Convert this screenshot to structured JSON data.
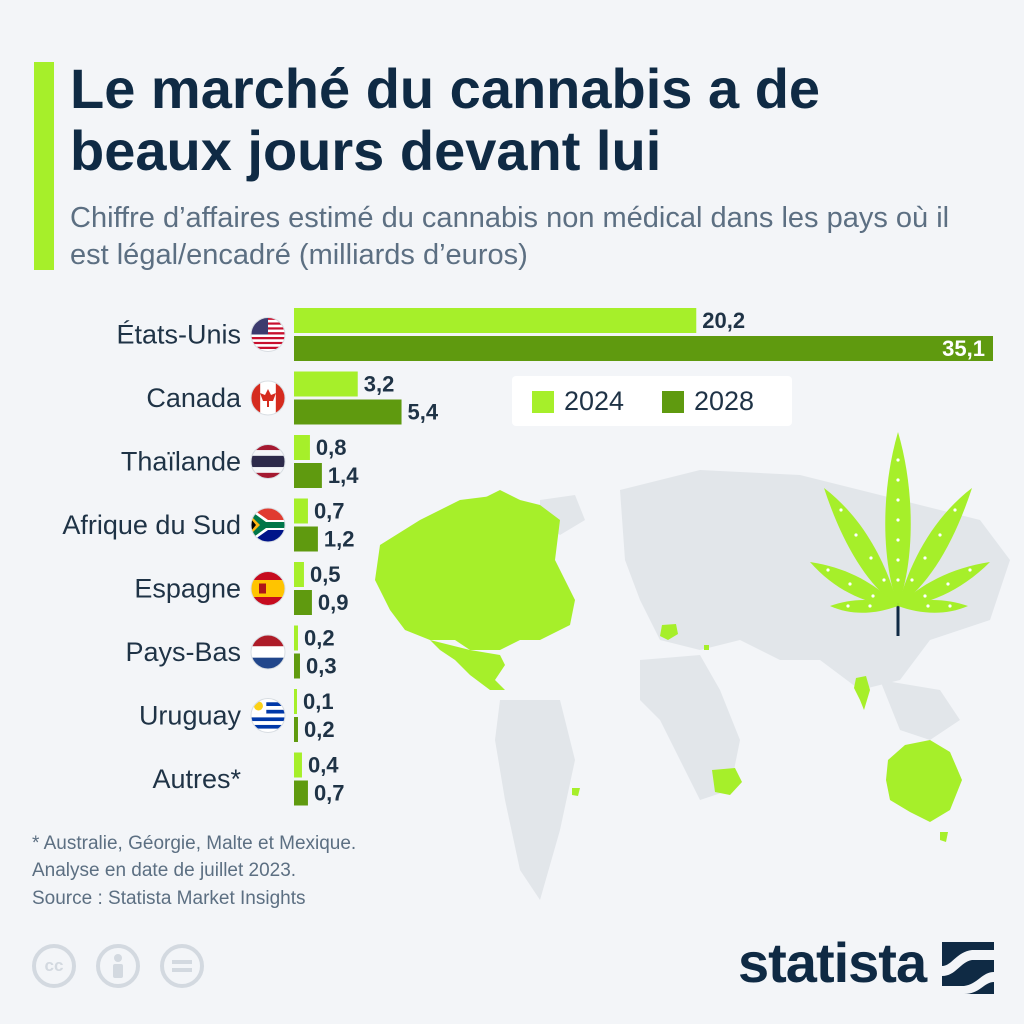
{
  "header": {
    "title": "Le marché du cannabis a de beaux jours devant lui",
    "subtitle": "Chiffre d’affaires estimé du cannabis non médical dans les pays où il est légal/encadré (milliards d’euros)"
  },
  "chart_data": {
    "type": "bar",
    "orientation": "horizontal",
    "title": "Le marché du cannabis a de beaux jours devant lui",
    "subtitle": "Chiffre d’affaires estimé du cannabis non médical dans les pays où il est légal/encadré (milliards d’euros)",
    "categories": [
      "États-Unis",
      "Canada",
      "Thaïlande",
      "Afrique du Sud",
      "Espagne",
      "Pays-Bas",
      "Uruguay",
      "Autres*"
    ],
    "series": [
      {
        "name": "2024",
        "color": "#a6ef2a",
        "values": [
          20.2,
          3.2,
          0.8,
          0.7,
          0.5,
          0.2,
          0.1,
          0.4
        ],
        "labels": [
          "20,2",
          "3,2",
          "0,8",
          "0,7",
          "0,5",
          "0,2",
          "0,1",
          "0,4"
        ]
      },
      {
        "name": "2028",
        "color": "#5f9a0f",
        "values": [
          35.1,
          5.4,
          1.4,
          1.2,
          0.9,
          0.3,
          0.2,
          0.7
        ],
        "labels": [
          "35,1",
          "5,4",
          "1,4",
          "1,2",
          "0,9",
          "0,3",
          "0,2",
          "0,7"
        ]
      }
    ],
    "flags": [
      "us-flag-icon",
      "canada-flag-icon",
      "thailand-flag-icon",
      "south-africa-flag-icon",
      "spain-flag-icon",
      "netherlands-flag-icon",
      "uruguay-flag-icon",
      ""
    ],
    "legend_position": "top-right",
    "xlim": [
      0,
      35.1
    ],
    "grid": false
  },
  "legend": {
    "items": [
      "2024",
      "2028"
    ]
  },
  "footnote": {
    "lines": [
      "* Australie, Géorgie, Malte et Mexique.",
      "Analyse en date de juillet 2023."
    ],
    "source": "Source : Statista Market Insights"
  },
  "brand": {
    "name": "statista"
  },
  "license_icons": [
    "cc-icon",
    "attribution-icon",
    "no-derivatives-icon"
  ],
  "colors": {
    "accent": "#a6ef2a",
    "dark_green": "#5f9a0f",
    "navy": "#0f2a44",
    "map_grey": "#e3e7eb"
  }
}
